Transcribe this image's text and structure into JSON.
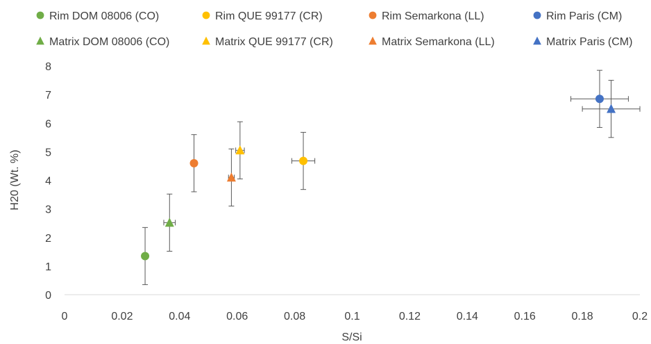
{
  "chart_data": {
    "type": "scatter",
    "title": "",
    "xlabel": "S/Si",
    "ylabel": "H20 (Wt. %)",
    "xlim": [
      0,
      0.2
    ],
    "ylim": [
      0,
      8
    ],
    "x_ticks": [
      "0",
      "0.02",
      "0.04",
      "0.06",
      "0.08",
      "0.1",
      "0.12",
      "0.14",
      "0.16",
      "0.18",
      "0.2"
    ],
    "y_ticks": [
      "0",
      "1",
      "2",
      "3",
      "4",
      "5",
      "6",
      "7",
      "8"
    ],
    "grid": false,
    "legend_position": "top",
    "series": [
      {
        "name": "Rim DOM 08006 (CO)",
        "marker": "circle",
        "color": "#70ad47",
        "points": [
          {
            "x": 0.028,
            "y": 1.35,
            "y_err": 1.0,
            "x_err": 0
          }
        ]
      },
      {
        "name": "Rim QUE 99177 (CR)",
        "marker": "circle",
        "color": "#ffc000",
        "points": [
          {
            "x": 0.083,
            "y": 4.68,
            "y_err": 1.0,
            "x_err": 0.004
          }
        ]
      },
      {
        "name": "Rim Semarkona (LL)",
        "marker": "circle",
        "color": "#ed7d31",
        "points": [
          {
            "x": 0.045,
            "y": 4.6,
            "y_err": 1.0,
            "x_err": 0
          }
        ]
      },
      {
        "name": "Rim Paris (CM)",
        "marker": "circle",
        "color": "#4472c4",
        "points": [
          {
            "x": 0.186,
            "y": 6.85,
            "y_err": 1.0,
            "x_err": 0.01
          }
        ]
      },
      {
        "name": "Matrix DOM 08006 (CO)",
        "marker": "triangle",
        "color": "#70ad47",
        "points": [
          {
            "x": 0.0365,
            "y": 2.52,
            "y_err": 1.0,
            "x_err": 0.002
          }
        ]
      },
      {
        "name": "Matrix QUE 99177 (CR)",
        "marker": "triangle",
        "color": "#ffc000",
        "points": [
          {
            "x": 0.061,
            "y": 5.05,
            "y_err": 1.0,
            "x_err": 0.0015
          }
        ]
      },
      {
        "name": "Matrix Semarkona (LL)",
        "marker": "triangle",
        "color": "#ed7d31",
        "points": [
          {
            "x": 0.058,
            "y": 4.1,
            "y_err": 1.0,
            "x_err": 0.001
          }
        ]
      },
      {
        "name": "Matrix Paris (CM)",
        "marker": "triangle",
        "color": "#4472c4",
        "points": [
          {
            "x": 0.19,
            "y": 6.5,
            "y_err": 1.0,
            "x_err": 0.01
          }
        ]
      }
    ]
  }
}
